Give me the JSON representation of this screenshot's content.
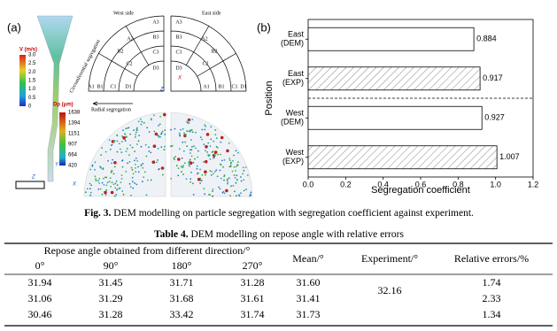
{
  "figure_a": {
    "panel_label": "(a)",
    "velocity_legend": {
      "title": "V (m/s)",
      "ticks": [
        "3.0",
        "2.5",
        "2.0",
        "1.5",
        "1.0",
        "0.5",
        "0"
      ]
    },
    "diameter_legend": {
      "title": "Dp (μm)",
      "ticks": [
        "1638",
        "1394",
        "1151",
        "907",
        "664",
        "420"
      ]
    },
    "west_side": "West side",
    "east_side": "East side",
    "circumferential": "Circumferential segregation",
    "radial": "Radial segregation",
    "west_zones": [
      "A3",
      "B3",
      "C3",
      "D3",
      "A2",
      "B2",
      "C2",
      "A1",
      "B1",
      "C1",
      "D1"
    ],
    "east_zones": [
      "A3",
      "B3",
      "C3",
      "D3",
      "A2",
      "B2",
      "C2",
      "D1",
      "C1",
      "B1",
      "A1"
    ],
    "axes_top": [
      "Z",
      "X"
    ],
    "axes_bottom": [
      "Y",
      "Z",
      "X"
    ]
  },
  "chart_data": {
    "type": "barh",
    "panel_label": "(b)",
    "categories": [
      "East (DEM)",
      "East (EXP)",
      "West (DEM)",
      "West (EXP)"
    ],
    "values": [
      0.884,
      0.917,
      0.927,
      1.007
    ],
    "hatched": [
      false,
      true,
      false,
      true
    ],
    "color": "#ffffff",
    "edge_color": "#000000",
    "xlim": [
      0,
      1.2
    ],
    "xticks": [
      {
        "value": 0,
        "label": "0.0"
      },
      {
        "value": 0.2,
        "label": "0.2"
      },
      {
        "value": 0.4,
        "label": "0.4"
      },
      {
        "value": 0.6,
        "label": "0.6"
      },
      {
        "value": 0.8,
        "label": "0.8"
      },
      {
        "value": 1,
        "label": "1.0"
      },
      {
        "value": 1.2,
        "label": "1.2"
      }
    ],
    "xlabel": "Segregation coefficient",
    "ylabel": "Position"
  },
  "caption": {
    "label": "Fig. 3.",
    "text": " DEM modelling on particle segregation with segregation coefficient against experiment."
  },
  "table": {
    "title_label": "Table 4.",
    "title": " DEM modelling on repose angle with relative errors",
    "group_header": "Repose angle obtained from different direction/°",
    "headers": [
      "0°",
      "90°",
      "180°",
      "270°",
      "Mean/°",
      "Experiment/°",
      "Relative errors/%"
    ],
    "rows": [
      [
        "31.94",
        "31.45",
        "31.71",
        "31.28",
        "31.60",
        "1.74"
      ],
      [
        "31.06",
        "31.29",
        "31.68",
        "31.61",
        "31.41",
        "2.33"
      ],
      [
        "30.46",
        "31.28",
        "33.42",
        "31.74",
        "31.73",
        "1.34"
      ]
    ],
    "experiment": "32.16"
  }
}
